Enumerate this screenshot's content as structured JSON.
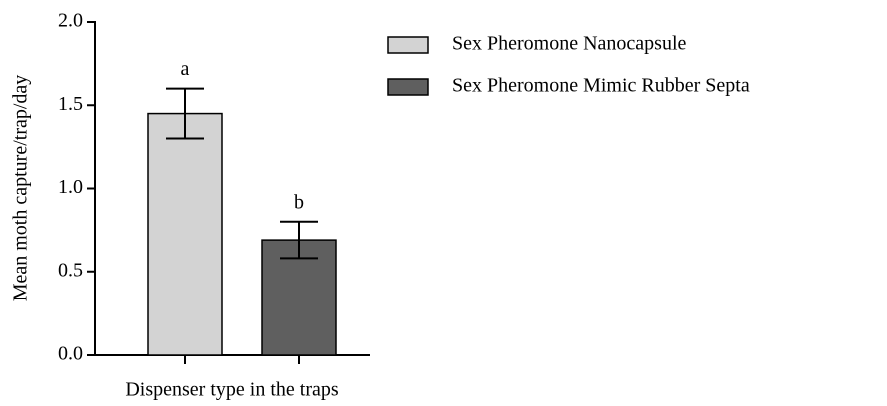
{
  "chart_data": {
    "type": "bar",
    "x_label": "Dispenser type in the traps",
    "y_label": "Mean moth capture/trap/day",
    "categories": [
      null,
      null
    ],
    "series": [
      {
        "name": "Sex Pheromone Nanocapsule",
        "color": "#d3d3d3",
        "values": [
          1.45,
          null
        ],
        "errors": [
          0.15,
          null
        ]
      },
      {
        "name": "Sex Pheromone Mimic Rubber Septa",
        "color": "#5f5f5f",
        "values": [
          null,
          0.69
        ],
        "errors": [
          null,
          0.11
        ]
      }
    ],
    "annotations": [
      "a",
      "b"
    ],
    "ylim": [
      0,
      2
    ],
    "yticks": [
      {
        "value": 0,
        "label": "0.0"
      },
      {
        "value": 0.5,
        "label": "0.5"
      },
      {
        "value": 1,
        "label": "1.0"
      },
      {
        "value": 1.5,
        "label": "1.5"
      },
      {
        "value": 2,
        "label": "2.0"
      }
    ],
    "legend": "right"
  }
}
